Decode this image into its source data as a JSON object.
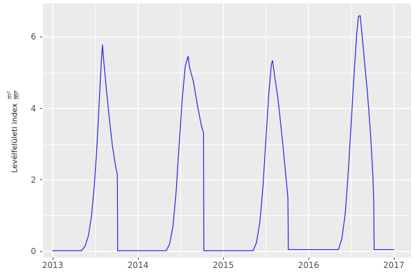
{
  "figure": {
    "background": "#ffffff",
    "panel_background": "#ebebeb",
    "grid_color": "#ffffff",
    "tick_mark_color": "#333333",
    "tick_label_color": "#4d4d4d",
    "axis_title_color": "#1a1a1a"
  },
  "chart_data": {
    "type": "line",
    "title": "",
    "xlabel": "",
    "ylabel": "Levélfelületi index",
    "ylabel_unit_numerator": "m²",
    "ylabel_unit_denominator": "m²",
    "legend_position": "none",
    "grid": true,
    "x_tick_labels": [
      "2013",
      "2014",
      "2015",
      "2016",
      "2017"
    ],
    "y_tick_labels": [
      "0",
      "2",
      "4",
      "6"
    ],
    "x_major": [
      2013,
      2014,
      2015,
      2016,
      2017
    ],
    "x_minor": [
      2013.5,
      2014.5,
      2015.5,
      2016.5
    ],
    "y_major": [
      0,
      2,
      4,
      6
    ],
    "y_minor": [
      1,
      3,
      5
    ],
    "xlim": [
      2012.886,
      2017.203
    ],
    "ylim": [
      -0.174,
      6.94
    ],
    "series": [
      {
        "name": "LAI",
        "color": "#2222dd",
        "points": [
          [
            2013.0,
            0.02
          ],
          [
            2013.34,
            0.02
          ],
          [
            2013.38,
            0.15
          ],
          [
            2013.42,
            0.45
          ],
          [
            2013.455,
            1.0
          ],
          [
            2013.49,
            1.9
          ],
          [
            2013.52,
            3.0
          ],
          [
            2013.55,
            4.4
          ],
          [
            2013.57,
            5.3
          ],
          [
            2013.583,
            5.78
          ],
          [
            2013.6,
            5.3
          ],
          [
            2013.625,
            4.65
          ],
          [
            2013.66,
            3.8
          ],
          [
            2013.7,
            2.95
          ],
          [
            2013.74,
            2.35
          ],
          [
            2013.758,
            2.15
          ],
          [
            2013.762,
            0.02
          ],
          [
            2014.33,
            0.02
          ],
          [
            2014.37,
            0.2
          ],
          [
            2014.41,
            0.7
          ],
          [
            2014.445,
            1.6
          ],
          [
            2014.48,
            2.9
          ],
          [
            2014.52,
            4.3
          ],
          [
            2014.555,
            5.2
          ],
          [
            2014.588,
            5.46
          ],
          [
            2014.605,
            5.15
          ],
          [
            2014.65,
            4.75
          ],
          [
            2014.7,
            4.05
          ],
          [
            2014.745,
            3.5
          ],
          [
            2014.768,
            3.33
          ],
          [
            2014.772,
            0.02
          ],
          [
            2015.35,
            0.02
          ],
          [
            2015.39,
            0.25
          ],
          [
            2015.43,
            0.85
          ],
          [
            2015.465,
            1.8
          ],
          [
            2015.5,
            3.15
          ],
          [
            2015.535,
            4.45
          ],
          [
            2015.565,
            5.25
          ],
          [
            2015.578,
            5.34
          ],
          [
            2015.6,
            4.95
          ],
          [
            2015.64,
            4.3
          ],
          [
            2015.69,
            3.2
          ],
          [
            2015.73,
            2.2
          ],
          [
            2015.758,
            1.5
          ],
          [
            2015.763,
            0.05
          ],
          [
            2016.35,
            0.05
          ],
          [
            2016.39,
            0.35
          ],
          [
            2016.43,
            1.05
          ],
          [
            2016.465,
            2.2
          ],
          [
            2016.5,
            3.6
          ],
          [
            2016.535,
            5.0
          ],
          [
            2016.565,
            6.1
          ],
          [
            2016.585,
            6.58
          ],
          [
            2016.605,
            6.6
          ],
          [
            2016.62,
            6.25
          ],
          [
            2016.655,
            5.35
          ],
          [
            2016.69,
            4.45
          ],
          [
            2016.725,
            3.35
          ],
          [
            2016.755,
            2.1
          ],
          [
            2016.765,
            1.3
          ],
          [
            2016.769,
            0.05
          ],
          [
            2017.0,
            0.05
          ]
        ]
      }
    ]
  }
}
